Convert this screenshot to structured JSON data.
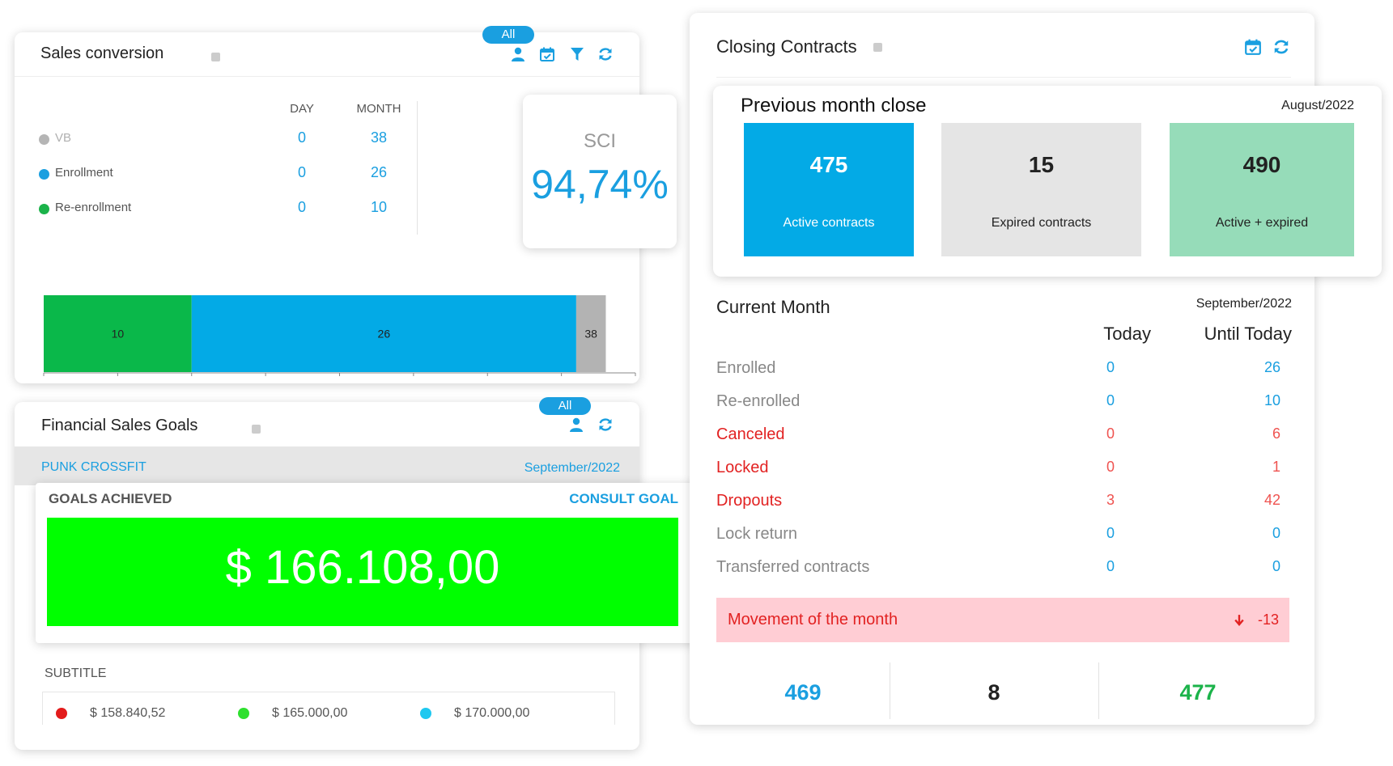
{
  "sales_conversion": {
    "title": "Sales conversion",
    "filter_pill": "All",
    "col_day": "DAY",
    "col_month": "MONTH",
    "rows": [
      {
        "label": "VB",
        "day": "0",
        "month": "38",
        "dot_color": "#b5b5b5"
      },
      {
        "label": "Enrollment",
        "day": "0",
        "month": "26",
        "dot_color": "#1a9fe0"
      },
      {
        "label": "Re-enrollment",
        "day": "0",
        "month": "10",
        "dot_color": "#1bb34a"
      }
    ],
    "sci_label": "SCI",
    "sci_value": "94,74%"
  },
  "chart_data": {
    "type": "bar",
    "orientation": "horizontal",
    "stacked": true,
    "segments": [
      {
        "label": "10",
        "value": 10,
        "color": "#0ab84a"
      },
      {
        "label": "26",
        "value": 26,
        "color": "#03aae6"
      },
      {
        "label": "38",
        "value": 2,
        "color": "#b3b3b3"
      }
    ],
    "xlim": [
      0,
      40
    ],
    "xticks": [
      "0",
      "5",
      "10",
      "15",
      "20",
      "25",
      "30",
      "35",
      "40"
    ]
  },
  "financial_goals": {
    "title": "Financial Sales Goals",
    "filter_pill": "All",
    "company": "PUNK CROSSFIT",
    "period": "September/2022",
    "goals_label": "GOALS ACHIEVED",
    "consult_label": "CONSULT GOAL",
    "amount": "$ 166.108,00",
    "subtitle_label": "SUBTITLE",
    "legend": [
      {
        "value": "$ 158.840,52",
        "color": "#e31b1b"
      },
      {
        "value": "$ 165.000,00",
        "color": "#2ee02e"
      },
      {
        "value": "$ 170.000,00",
        "color": "#1ec8f0"
      }
    ]
  },
  "closing_contracts": {
    "title": "Closing Contracts",
    "prev": {
      "title": "Previous month close",
      "period": "August/2022",
      "boxes": [
        {
          "value": "475",
          "label": "Active contracts"
        },
        {
          "value": "15",
          "label": "Expired contracts"
        },
        {
          "value": "490",
          "label": "Active + expired"
        }
      ]
    },
    "current": {
      "title": "Current Month",
      "period": "September/2022",
      "col_today": "Today",
      "col_until": "Until Today",
      "rows": [
        {
          "label": "Enrolled",
          "today": "0",
          "until": "26"
        },
        {
          "label": "Re-enrolled",
          "today": "0",
          "until": "10"
        },
        {
          "label": "Canceled",
          "today": "0",
          "until": "6"
        },
        {
          "label": "Locked",
          "today": "0",
          "until": "1"
        },
        {
          "label": "Dropouts",
          "today": "3",
          "until": "42"
        },
        {
          "label": "Lock return",
          "today": "0",
          "until": "0"
        },
        {
          "label": "Transferred contracts",
          "today": "0",
          "until": "0"
        }
      ],
      "movement_label": "Movement of the month",
      "movement_value": "-13",
      "totals": [
        "469",
        "8",
        "477"
      ]
    }
  },
  "colors": {
    "accent": "#1a9fe0",
    "active_box": "#03aae6",
    "expired_box": "#e5e5e5",
    "combined_box": "#96dcb9",
    "goal_green": "#00ff00",
    "movement_bg": "#ffcdd4",
    "negative_red": "#e22222"
  }
}
